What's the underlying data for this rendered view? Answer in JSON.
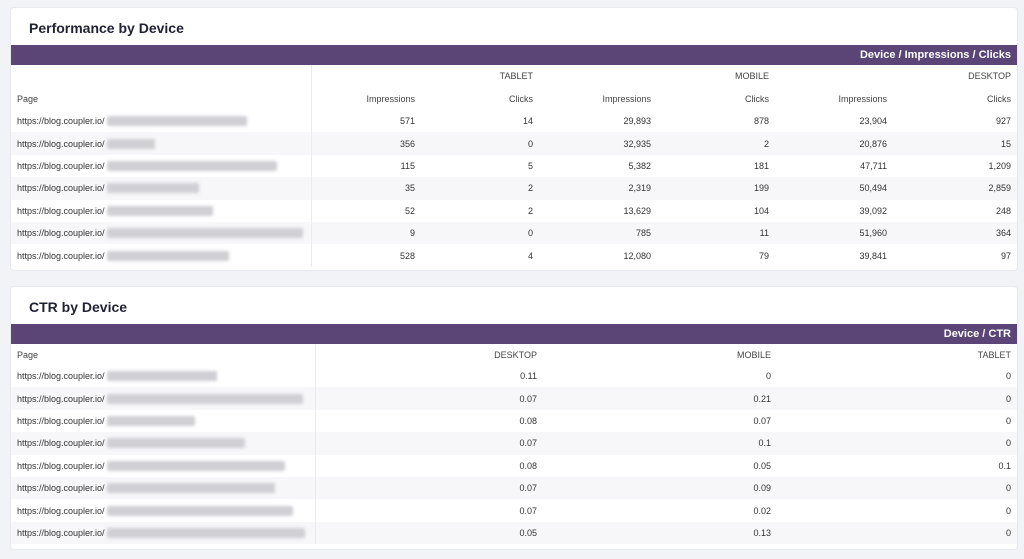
{
  "performance": {
    "title": "Performance by Device",
    "band_label": "Device / Impressions / Clicks",
    "page_label": "Page",
    "devices": [
      "TABLET",
      "MOBILE",
      "DESKTOP"
    ],
    "metrics": [
      "Impressions",
      "Clicks",
      "Impressions",
      "Clicks",
      "Impressions",
      "Clicks"
    ],
    "rows": [
      {
        "url": "https://blog.coupler.io/",
        "values": [
          "571",
          "14",
          "29,893",
          "878",
          "23,904",
          "927"
        ]
      },
      {
        "url": "https://blog.coupler.io/",
        "values": [
          "356",
          "0",
          "32,935",
          "2",
          "20,876",
          "15"
        ]
      },
      {
        "url": "https://blog.coupler.io/",
        "values": [
          "115",
          "5",
          "5,382",
          "181",
          "47,711",
          "1,209"
        ]
      },
      {
        "url": "https://blog.coupler.io/",
        "values": [
          "35",
          "2",
          "2,319",
          "199",
          "50,494",
          "2,859"
        ]
      },
      {
        "url": "https://blog.coupler.io/",
        "values": [
          "52",
          "2",
          "13,629",
          "104",
          "39,092",
          "248"
        ]
      },
      {
        "url": "https://blog.coupler.io/",
        "values": [
          "9",
          "0",
          "785",
          "11",
          "51,960",
          "364"
        ]
      },
      {
        "url": "https://blog.coupler.io/",
        "values": [
          "528",
          "4",
          "12,080",
          "79",
          "39,841",
          "97"
        ]
      }
    ]
  },
  "ctr": {
    "title": "CTR by Device",
    "band_label": "Device / CTR",
    "page_label": "Page",
    "devices": [
      "DESKTOP",
      "MOBILE",
      "TABLET"
    ],
    "rows": [
      {
        "url": "https://blog.coupler.io/",
        "values": [
          "0.11",
          "0",
          "0"
        ]
      },
      {
        "url": "https://blog.coupler.io/",
        "values": [
          "0.07",
          "0.21",
          "0"
        ]
      },
      {
        "url": "https://blog.coupler.io/",
        "values": [
          "0.08",
          "0.07",
          "0"
        ]
      },
      {
        "url": "https://blog.coupler.io/",
        "values": [
          "0.07",
          "0.1",
          "0"
        ]
      },
      {
        "url": "https://blog.coupler.io/",
        "values": [
          "0.08",
          "0.05",
          "0.1"
        ]
      },
      {
        "url": "https://blog.coupler.io/",
        "values": [
          "0.07",
          "0.09",
          "0"
        ]
      },
      {
        "url": "https://blog.coupler.io/",
        "values": [
          "0.07",
          "0.02",
          "0"
        ]
      },
      {
        "url": "https://blog.coupler.io/",
        "values": [
          "0.05",
          "0.13",
          "0"
        ]
      }
    ]
  },
  "colors": {
    "band": "#5a4576",
    "background": "#f2f3f6"
  }
}
